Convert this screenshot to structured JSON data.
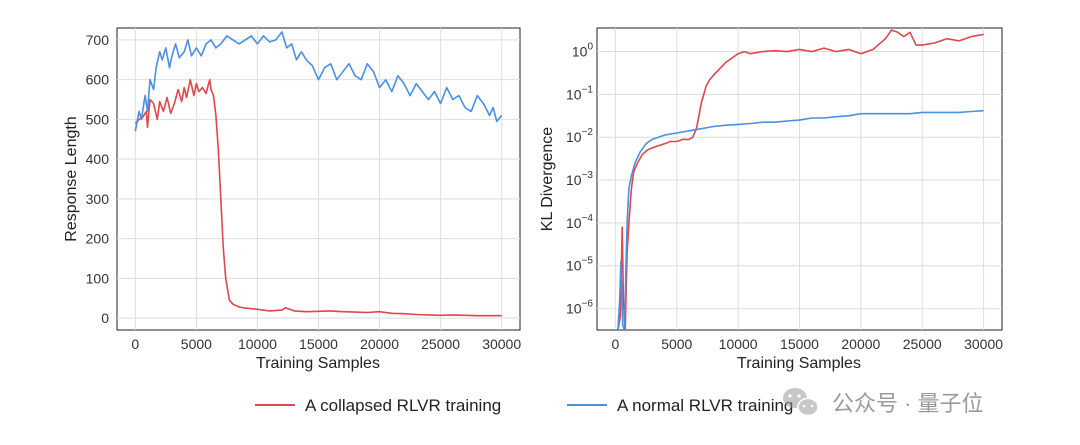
{
  "chart_data": [
    {
      "type": "line",
      "title": "",
      "xlabel": "Training Samples",
      "ylabel": "Response Length",
      "xlim": [
        -1500,
        31500
      ],
      "ylim": [
        -30,
        730
      ],
      "xticks": [
        0,
        5000,
        10000,
        15000,
        20000,
        25000,
        30000
      ],
      "xtick_labels": [
        "0",
        "5000",
        "10000",
        "15000",
        "20000",
        "25000",
        "30000"
      ],
      "yticks": [
        0,
        100,
        200,
        300,
        400,
        500,
        600,
        700
      ],
      "ytick_labels": [
        "0",
        "100",
        "200",
        "300",
        "400",
        "500",
        "600",
        "700"
      ],
      "grid": true,
      "series": [
        {
          "name": "A collapsed RLVR training",
          "color": "#e0474c",
          "x": [
            0,
            300,
            600,
            900,
            1000,
            1200,
            1500,
            1800,
            2000,
            2300,
            2600,
            2900,
            3200,
            3500,
            3800,
            4000,
            4200,
            4500,
            4800,
            5000,
            5200,
            5500,
            5800,
            6000,
            6100,
            6200,
            6400,
            6600,
            6800,
            7000,
            7200,
            7400,
            7700,
            8000,
            8500,
            9000,
            10000,
            11000,
            12000,
            12300,
            13000,
            14000,
            15000,
            16000,
            17000,
            18000,
            19000,
            20000,
            21000,
            22000,
            23000,
            24000,
            25000,
            26000,
            27000,
            28000,
            29000,
            30000
          ],
          "values": [
            490,
            500,
            505,
            520,
            480,
            550,
            540,
            500,
            545,
            520,
            555,
            515,
            540,
            575,
            545,
            580,
            555,
            600,
            560,
            590,
            570,
            580,
            565,
            590,
            600,
            575,
            560,
            510,
            420,
            300,
            180,
            100,
            45,
            35,
            28,
            25,
            22,
            18,
            20,
            26,
            18,
            16,
            17,
            18,
            16,
            15,
            14,
            16,
            12,
            11,
            9,
            8,
            7,
            8,
            7,
            6,
            6,
            6
          ]
        },
        {
          "name": "A normal RLVR training",
          "color": "#4a90e2",
          "x": [
            0,
            300,
            500,
            800,
            1000,
            1200,
            1500,
            1700,
            2000,
            2200,
            2500,
            2800,
            3000,
            3300,
            3600,
            4000,
            4300,
            4600,
            5000,
            5400,
            5800,
            6200,
            6600,
            7000,
            7500,
            8000,
            8500,
            9000,
            9500,
            10000,
            10500,
            11000,
            11500,
            12000,
            12400,
            12800,
            13200,
            13600,
            14000,
            14500,
            15000,
            15500,
            16000,
            16500,
            17000,
            17500,
            18000,
            18500,
            19000,
            19500,
            20000,
            20500,
            21000,
            21500,
            22000,
            22500,
            23000,
            23500,
            24000,
            24500,
            25000,
            25500,
            26000,
            26500,
            27000,
            27500,
            28000,
            28500,
            29000,
            29300,
            29600,
            30000
          ],
          "values": [
            470,
            520,
            500,
            560,
            520,
            600,
            575,
            630,
            670,
            650,
            680,
            630,
            660,
            690,
            655,
            670,
            700,
            660,
            680,
            660,
            690,
            700,
            680,
            690,
            710,
            700,
            690,
            700,
            710,
            690,
            710,
            695,
            700,
            720,
            680,
            690,
            650,
            670,
            650,
            635,
            600,
            630,
            640,
            600,
            620,
            640,
            610,
            600,
            640,
            620,
            580,
            600,
            570,
            610,
            590,
            560,
            590,
            570,
            550,
            570,
            540,
            580,
            550,
            560,
            530,
            520,
            560,
            540,
            510,
            530,
            495,
            510
          ]
        }
      ]
    },
    {
      "type": "line",
      "title": "",
      "xlabel": "Training Samples",
      "ylabel": "KL Divergence",
      "yscale": "log",
      "xlim": [
        -1500,
        31500
      ],
      "ylim_log10": [
        -6.5,
        0.55
      ],
      "xticks": [
        0,
        5000,
        10000,
        15000,
        20000,
        25000,
        30000
      ],
      "xtick_labels": [
        "0",
        "5000",
        "10000",
        "15000",
        "20000",
        "25000",
        "30000"
      ],
      "yticks_log10": [
        -6,
        -5,
        -4,
        -3,
        -2,
        -1,
        0
      ],
      "ytick_labels": [
        {
          "base": "10",
          "exp": "−6"
        },
        {
          "base": "10",
          "exp": "−5"
        },
        {
          "base": "10",
          "exp": "−4"
        },
        {
          "base": "10",
          "exp": "−3"
        },
        {
          "base": "10",
          "exp": "−2"
        },
        {
          "base": "10",
          "exp": "−1"
        },
        {
          "base": "10",
          "exp": "0"
        }
      ],
      "grid": true,
      "series": [
        {
          "name": "A collapsed RLVR training",
          "color": "#e0474c",
          "x": [
            0,
            200,
            400,
            550,
            650,
            800,
            950,
            1100,
            1300,
            1500,
            1800,
            2200,
            2600,
            3000,
            3500,
            4000,
            4500,
            5000,
            5500,
            6000,
            6300,
            6600,
            6800,
            7000,
            7200,
            7400,
            7700,
            8000,
            8500,
            9000,
            9500,
            10000,
            10500,
            11000,
            12000,
            13000,
            14000,
            15000,
            16000,
            17000,
            18000,
            19000,
            20000,
            21000,
            22000,
            22500,
            23000,
            23500,
            24000,
            24500,
            25000,
            26000,
            27000,
            28000,
            29000,
            30000
          ],
          "log10_values": [
            -6.6,
            -6.6,
            -6.2,
            -4.1,
            -5.8,
            -6.6,
            -4.7,
            -4.0,
            -3.2,
            -2.8,
            -2.6,
            -2.4,
            -2.3,
            -2.25,
            -2.2,
            -2.15,
            -2.1,
            -2.1,
            -2.05,
            -2.05,
            -2.0,
            -1.8,
            -1.5,
            -1.2,
            -1.0,
            -0.8,
            -0.65,
            -0.55,
            -0.4,
            -0.25,
            -0.15,
            -0.05,
            0.0,
            -0.05,
            0.0,
            0.02,
            0.0,
            0.05,
            0.0,
            0.08,
            0.0,
            0.05,
            -0.05,
            0.05,
            0.3,
            0.5,
            0.45,
            0.35,
            0.45,
            0.15,
            0.15,
            0.2,
            0.3,
            0.25,
            0.35,
            0.4
          ]
        },
        {
          "name": "A normal RLVR training",
          "color": "#4a90e2",
          "x": [
            0,
            200,
            350,
            450,
            600,
            750,
            850,
            950,
            1100,
            1300,
            1600,
            2000,
            2500,
            3000,
            3500,
            4000,
            5000,
            6000,
            7000,
            8000,
            9000,
            10000,
            11000,
            12000,
            13000,
            14000,
            15000,
            16000,
            17000,
            18000,
            19000,
            20000,
            21000,
            22000,
            23000,
            24000,
            25000,
            26000,
            27000,
            28000,
            29000,
            30000
          ],
          "log10_values": [
            -6.6,
            -6.6,
            -5.8,
            -4.9,
            -6.4,
            -6.6,
            -5.2,
            -4.0,
            -3.2,
            -2.9,
            -2.6,
            -2.35,
            -2.15,
            -2.05,
            -2.0,
            -1.95,
            -1.9,
            -1.85,
            -1.8,
            -1.75,
            -1.72,
            -1.7,
            -1.68,
            -1.65,
            -1.65,
            -1.62,
            -1.6,
            -1.55,
            -1.55,
            -1.52,
            -1.5,
            -1.45,
            -1.45,
            -1.45,
            -1.45,
            -1.45,
            -1.42,
            -1.42,
            -1.42,
            -1.42,
            -1.4,
            -1.38
          ]
        }
      ]
    }
  ],
  "legend": {
    "items": [
      {
        "label": "A collapsed RLVR training",
        "color": "#e0474c"
      },
      {
        "label": "A normal RLVR training",
        "color": "#4a90e2"
      }
    ]
  },
  "watermark": {
    "text": "公众号 · 量子位",
    "icon": "wechat-icon"
  }
}
